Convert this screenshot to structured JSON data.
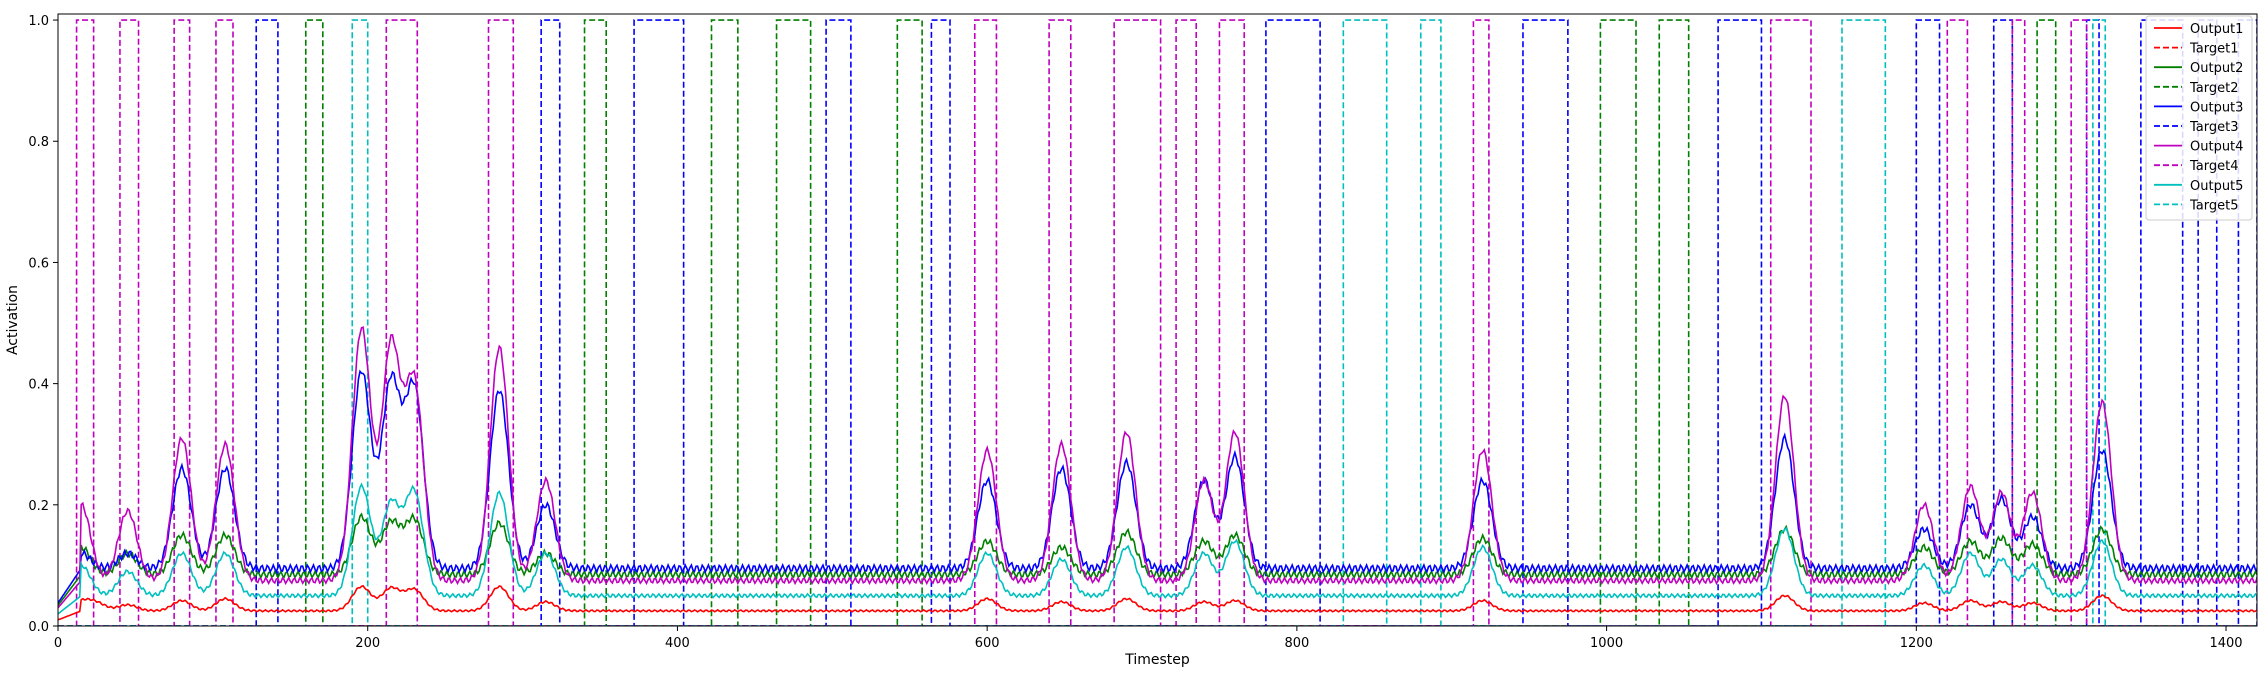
{
  "chart_data": {
    "type": "line",
    "xlabel": "Timestep",
    "ylabel": "Activation",
    "xlim": [
      0,
      1420
    ],
    "ylim": [
      0,
      1.01
    ],
    "x_ticks": [
      0,
      200,
      400,
      600,
      800,
      1000,
      1200,
      1400
    ],
    "y_ticks": [
      0.0,
      0.2,
      0.4,
      0.6,
      0.8,
      1.0
    ],
    "x_tick_labels": [
      "0",
      "200",
      "400",
      "600",
      "800",
      "1000",
      "1200",
      "1400"
    ],
    "y_tick_labels": [
      "0.0",
      "0.2",
      "0.4",
      "0.6",
      "0.8",
      "1.0"
    ],
    "grid": false,
    "legend_position": "top-right",
    "series": [
      {
        "name": "Output1",
        "color": "#ff0000",
        "style": "solid",
        "baseline": 0.025,
        "peaks": [
          [
            15,
            0.04
          ],
          [
            25,
            0.037
          ],
          [
            45,
            0.035
          ],
          [
            80,
            0.042
          ],
          [
            108,
            0.045
          ],
          [
            196,
            0.065
          ],
          [
            215,
            0.062
          ],
          [
            230,
            0.06
          ],
          [
            285,
            0.065
          ],
          [
            315,
            0.04
          ],
          [
            600,
            0.045
          ],
          [
            648,
            0.04
          ],
          [
            690,
            0.045
          ],
          [
            740,
            0.04
          ],
          [
            760,
            0.042
          ],
          [
            920,
            0.042
          ],
          [
            1115,
            0.05
          ],
          [
            1205,
            0.038
          ],
          [
            1235,
            0.042
          ],
          [
            1255,
            0.04
          ],
          [
            1275,
            0.038
          ],
          [
            1320,
            0.05
          ]
        ]
      },
      {
        "name": "Target1",
        "color": "#ff0000",
        "style": "dashed",
        "pulses": []
      },
      {
        "name": "Output2",
        "color": "#008000",
        "style": "solid",
        "baseline": 0.085,
        "peaks": [
          [
            15,
            0.13
          ],
          [
            45,
            0.12
          ],
          [
            80,
            0.15
          ],
          [
            108,
            0.15
          ],
          [
            196,
            0.18
          ],
          [
            215,
            0.17
          ],
          [
            230,
            0.175
          ],
          [
            285,
            0.17
          ],
          [
            315,
            0.12
          ],
          [
            600,
            0.14
          ],
          [
            648,
            0.13
          ],
          [
            690,
            0.155
          ],
          [
            740,
            0.14
          ],
          [
            760,
            0.15
          ],
          [
            920,
            0.145
          ],
          [
            1115,
            0.16
          ],
          [
            1205,
            0.13
          ],
          [
            1235,
            0.14
          ],
          [
            1255,
            0.145
          ],
          [
            1275,
            0.135
          ],
          [
            1320,
            0.16
          ]
        ]
      },
      {
        "name": "Target2",
        "color": "#008000",
        "style": "dashed",
        "pulses": [
          [
            160,
            171
          ],
          [
            340,
            354
          ],
          [
            422,
            439
          ],
          [
            464,
            486
          ],
          [
            542,
            558
          ],
          [
            996,
            1019
          ],
          [
            1034,
            1053
          ],
          [
            1278,
            1290
          ]
        ]
      },
      {
        "name": "Output3",
        "color": "#0000ff",
        "style": "solid",
        "baseline": 0.095,
        "peaks": [
          [
            15,
            0.12
          ],
          [
            45,
            0.12
          ],
          [
            80,
            0.26
          ],
          [
            108,
            0.26
          ],
          [
            196,
            0.42
          ],
          [
            215,
            0.4
          ],
          [
            230,
            0.39
          ],
          [
            285,
            0.39
          ],
          [
            315,
            0.2
          ],
          [
            600,
            0.24
          ],
          [
            648,
            0.26
          ],
          [
            690,
            0.27
          ],
          [
            740,
            0.24
          ],
          [
            760,
            0.28
          ],
          [
            920,
            0.24
          ],
          [
            1115,
            0.31
          ],
          [
            1205,
            0.16
          ],
          [
            1235,
            0.2
          ],
          [
            1255,
            0.21
          ],
          [
            1275,
            0.18
          ],
          [
            1320,
            0.29
          ]
        ]
      },
      {
        "name": "Target3",
        "color": "#0000ff",
        "style": "dashed",
        "pulses": [
          [
            128,
            142
          ],
          [
            312,
            324
          ],
          [
            372,
            404
          ],
          [
            496,
            512
          ],
          [
            564,
            576
          ],
          [
            780,
            815
          ],
          [
            946,
            975
          ],
          [
            1072,
            1100
          ],
          [
            1200,
            1215
          ],
          [
            1250,
            1262
          ],
          [
            1310,
            1318
          ],
          [
            1345,
            1372
          ],
          [
            1382,
            1394
          ],
          [
            1408,
            1420
          ]
        ]
      },
      {
        "name": "Output4",
        "color": "#bf00bf",
        "style": "solid",
        "baseline": 0.075,
        "peaks": [
          [
            15,
            0.2
          ],
          [
            45,
            0.19
          ],
          [
            80,
            0.31
          ],
          [
            108,
            0.3
          ],
          [
            196,
            0.49
          ],
          [
            215,
            0.46
          ],
          [
            230,
            0.4
          ],
          [
            285,
            0.46
          ],
          [
            315,
            0.24
          ],
          [
            600,
            0.29
          ],
          [
            648,
            0.3
          ],
          [
            690,
            0.32
          ],
          [
            740,
            0.24
          ],
          [
            760,
            0.32
          ],
          [
            920,
            0.29
          ],
          [
            1115,
            0.38
          ],
          [
            1205,
            0.2
          ],
          [
            1235,
            0.23
          ],
          [
            1255,
            0.22
          ],
          [
            1275,
            0.22
          ],
          [
            1320,
            0.37
          ]
        ]
      },
      {
        "name": "Target4",
        "color": "#bf00bf",
        "style": "dashed",
        "pulses": [
          [
            12,
            23
          ],
          [
            40,
            52
          ],
          [
            75,
            85
          ],
          [
            102,
            113
          ],
          [
            212,
            232
          ],
          [
            278,
            294
          ],
          [
            592,
            606
          ],
          [
            640,
            654
          ],
          [
            682,
            712
          ],
          [
            722,
            735
          ],
          [
            750,
            766
          ],
          [
            914,
            924
          ],
          [
            1106,
            1132
          ],
          [
            1220,
            1233
          ],
          [
            1262,
            1270
          ],
          [
            1300,
            1310
          ]
        ]
      },
      {
        "name": "Output5",
        "color": "#00bfbf",
        "style": "solid",
        "baseline": 0.05,
        "peaks": [
          [
            15,
            0.1
          ],
          [
            45,
            0.09
          ],
          [
            80,
            0.12
          ],
          [
            108,
            0.12
          ],
          [
            196,
            0.23
          ],
          [
            215,
            0.2
          ],
          [
            230,
            0.22
          ],
          [
            285,
            0.22
          ],
          [
            315,
            0.12
          ],
          [
            600,
            0.12
          ],
          [
            648,
            0.11
          ],
          [
            690,
            0.13
          ],
          [
            740,
            0.12
          ],
          [
            760,
            0.14
          ],
          [
            920,
            0.13
          ],
          [
            1115,
            0.16
          ],
          [
            1205,
            0.1
          ],
          [
            1235,
            0.12
          ],
          [
            1255,
            0.11
          ],
          [
            1275,
            0.1
          ],
          [
            1320,
            0.14
          ]
        ]
      },
      {
        "name": "Target5",
        "color": "#00bfbf",
        "style": "dashed",
        "pulses": [
          [
            190,
            200
          ],
          [
            830,
            858
          ],
          [
            880,
            893
          ],
          [
            1152,
            1180
          ],
          [
            1314,
            1322
          ]
        ]
      }
    ]
  }
}
